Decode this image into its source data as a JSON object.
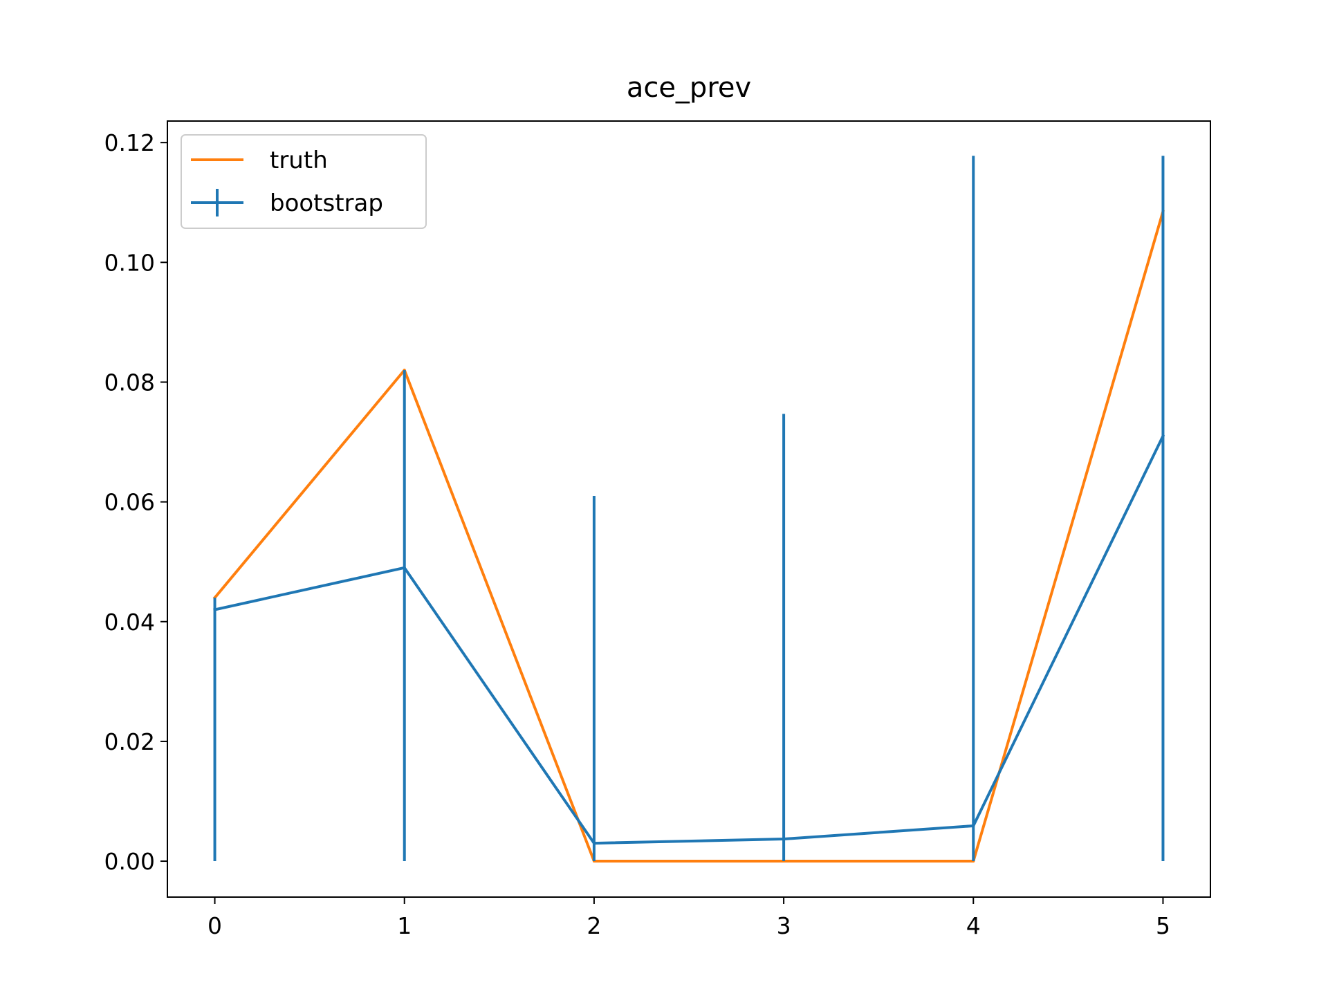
{
  "chart_data": {
    "type": "line",
    "title": "ace_prev",
    "xlabel": "",
    "ylabel": "",
    "x": [
      0,
      1,
      2,
      3,
      4,
      5
    ],
    "xlim": [
      -0.25,
      5.25
    ],
    "ylim": [
      -0.006,
      0.1236
    ],
    "xticks": [
      0,
      1,
      2,
      3,
      4,
      5
    ],
    "xtick_labels": [
      "0",
      "1",
      "2",
      "3",
      "4",
      "5"
    ],
    "yticks": [
      0.0,
      0.02,
      0.04,
      0.06,
      0.08,
      0.1,
      0.12
    ],
    "ytick_labels": [
      "0.00",
      "0.02",
      "0.04",
      "0.06",
      "0.08",
      "0.10",
      "0.12"
    ],
    "grid": false,
    "legend_position": "top-left",
    "series": [
      {
        "name": "truth",
        "color": "#ff7f0e",
        "values": [
          0.044,
          0.082,
          0.0,
          0.0,
          0.0,
          0.1085
        ]
      },
      {
        "name": "bootstrap",
        "color": "#1f77b4",
        "values": [
          0.042,
          0.049,
          0.003,
          0.0037,
          0.0059,
          0.071
        ],
        "error_low": [
          0.0,
          0.0,
          0.0,
          0.0,
          0.0,
          0.0
        ],
        "error_high": [
          0.044,
          0.082,
          0.061,
          0.0747,
          0.1178,
          0.1178
        ]
      }
    ]
  }
}
